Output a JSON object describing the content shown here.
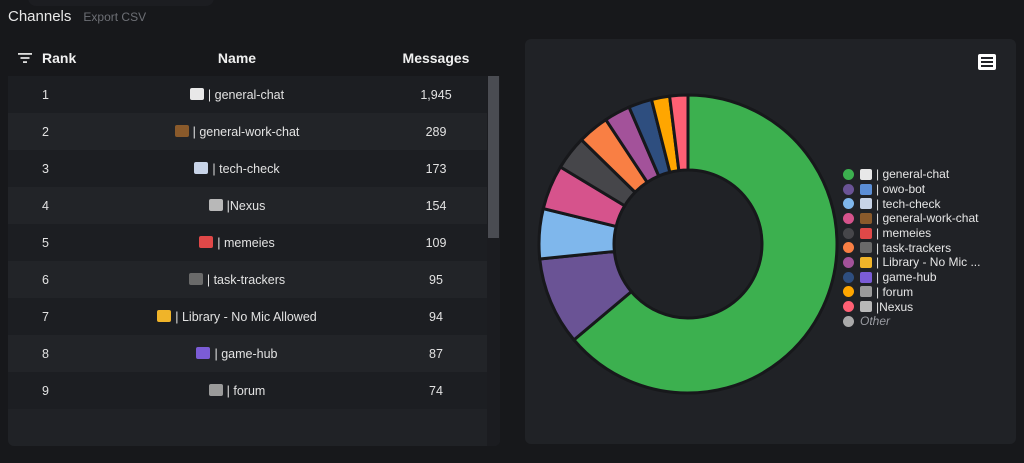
{
  "header": {
    "title": "Channels",
    "export_label": "Export CSV"
  },
  "table": {
    "columns": [
      "Rank",
      "Name",
      "Messages"
    ],
    "rows": [
      {
        "rank": "1",
        "icon": "speech-bubble-icon",
        "icon_color": "#e8e8e8",
        "name": "| general-chat",
        "messages": "1,945"
      },
      {
        "rank": "2",
        "icon": "briefcase-icon",
        "icon_color": "#8a5a2b",
        "name": "| general-work-chat",
        "messages": "289"
      },
      {
        "rank": "3",
        "icon": "rocket-icon",
        "icon_color": "#c8d4e8",
        "name": "| tech-check",
        "messages": "173"
      },
      {
        "rank": "4",
        "icon": "stadium-icon",
        "icon_color": "#b8b8b8",
        "name": "|Nexus",
        "messages": "154"
      },
      {
        "rank": "5",
        "icon": "clown-face-icon",
        "icon_color": "#e04848",
        "name": "| memeies",
        "messages": "109"
      },
      {
        "rank": "6",
        "icon": "people-silhouette-icon",
        "icon_color": "#6a6a6a",
        "name": "| task-trackers",
        "messages": "95"
      },
      {
        "rank": "7",
        "icon": "hushed-face-icon",
        "icon_color": "#f0b429",
        "name": "| Library - No Mic Allowed",
        "messages": "94"
      },
      {
        "rank": "8",
        "icon": "alien-monster-icon",
        "icon_color": "#7b5cd6",
        "name": "| game-hub",
        "messages": "87"
      },
      {
        "rank": "9",
        "icon": "laptop-icon",
        "icon_color": "#9a9a9a",
        "name": "| forum",
        "messages": "74"
      }
    ]
  },
  "chart_data": {
    "type": "pie",
    "subtype": "doughnut",
    "title": "",
    "categories": [
      "| general-chat",
      "| owo-bot",
      "| tech-check",
      "| general-work-chat",
      "| memeies",
      "| task-trackers",
      "| Library - No Mic ...",
      "| game-hub",
      "| forum",
      "|Nexus",
      "Other"
    ],
    "values": [
      1945,
      290,
      165,
      147,
      112,
      103,
      86,
      77,
      60,
      60,
      0
    ],
    "colors": [
      "#3cb04f",
      "#6a5395",
      "#7fb7ec",
      "#d6538c",
      "#46464a",
      "#f97f44",
      "#a3529a",
      "#2e4e7f",
      "#ffa600",
      "#ff6074",
      "#aaaaaa"
    ],
    "legend_position": "right",
    "note": "values estimated from slice angles; first value from table"
  },
  "legend": {
    "items": [
      {
        "label": "| general-chat",
        "color": "#3cb04f",
        "icon": "speech-bubble-icon",
        "icon_color": "#e8e8e8"
      },
      {
        "label": "| owo-bot",
        "color": "#6a5395",
        "icon": "wizard-icon",
        "icon_color": "#5b8ed6"
      },
      {
        "label": "| tech-check",
        "color": "#7fb7ec",
        "icon": "rocket-icon",
        "icon_color": "#c8d4e8"
      },
      {
        "label": "| general-work-chat",
        "color": "#d6538c",
        "icon": "briefcase-icon",
        "icon_color": "#8a5a2b"
      },
      {
        "label": "| memeies",
        "color": "#46464a",
        "icon": "clown-face-icon",
        "icon_color": "#e04848"
      },
      {
        "label": "| task-trackers",
        "color": "#f97f44",
        "icon": "people-silhouette-icon",
        "icon_color": "#6a6a6a"
      },
      {
        "label": "| Library - No Mic ...",
        "color": "#a3529a",
        "icon": "hushed-face-icon",
        "icon_color": "#f0b429"
      },
      {
        "label": "| game-hub",
        "color": "#2e4e7f",
        "icon": "alien-monster-icon",
        "icon_color": "#7b5cd6"
      },
      {
        "label": "| forum",
        "color": "#ffa600",
        "icon": "laptop-icon",
        "icon_color": "#9a9a9a"
      },
      {
        "label": "|Nexus",
        "color": "#ff6074",
        "icon": "stadium-icon",
        "icon_color": "#b8b8b8"
      },
      {
        "label": "Other",
        "color": "#aaaaaa",
        "icon": "",
        "icon_color": ""
      }
    ]
  }
}
